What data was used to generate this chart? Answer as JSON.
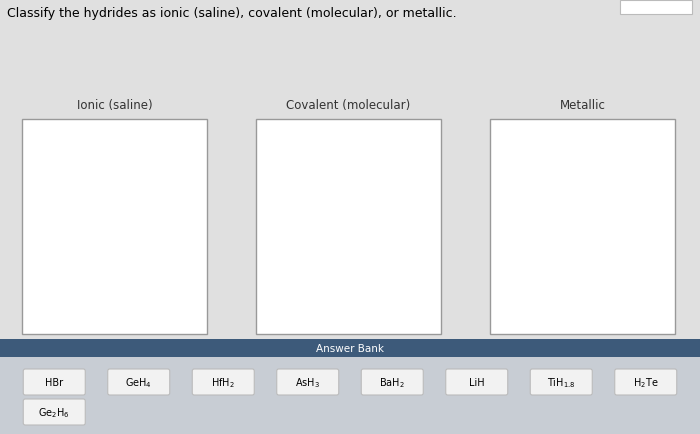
{
  "title": "Classify the hydrides as ionic (saline), covalent (molecular), or metallic.",
  "title_fontsize": 9,
  "categories": [
    "Ionic (saline)",
    "Covalent (molecular)",
    "Metallic"
  ],
  "answer_bank_label": "Answer Bank",
  "answer_bank_bg": "#3d5a7a",
  "answer_bank_items_row1": [
    "HBr",
    "GeH$_4$",
    "HfH$_2$",
    "AsH$_3$",
    "BaH$_2$",
    "LiH",
    "TiH$_{1.8}$",
    "H$_2$Te"
  ],
  "answer_bank_items_row2": [
    "Ge$_2$H$_6$"
  ],
  "bg_color": "#dcdcdc",
  "main_bg": "#e8e8e8",
  "box_bg": "white",
  "box_border": "#999999",
  "item_bg": "#f2f2f2",
  "item_border": "#bbbbbb",
  "answer_section_bg": "#c8cdd4",
  "top_right_box_color": "white",
  "label_color": "#333333"
}
